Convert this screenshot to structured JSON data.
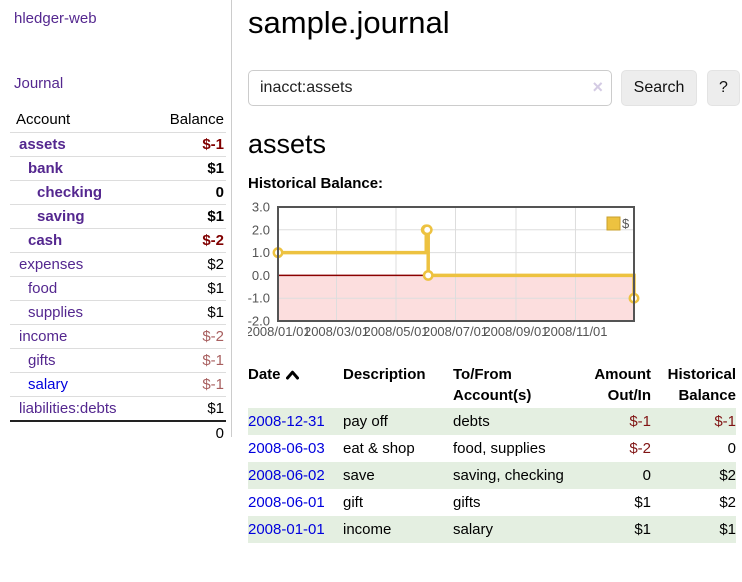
{
  "colors": {
    "accent_purple": "#54278f",
    "link_blue": "#0000dd",
    "negative_red": "#800000",
    "negative_red_light": "#a85f5f",
    "table_negative_red": "#801414",
    "row_green": "#e4efe1",
    "chart_gold": "#edc240",
    "chart_gold_border": "#c9a02e",
    "chart_border_gray": "#545454",
    "chart_zero_line": "#8b0000",
    "chart_negative_fill": "#fcdede",
    "chart_grid": "#dddddd"
  },
  "sidebar": {
    "app_title": "hledger-web",
    "nav_journal_label": "Journal",
    "accounts_table": {
      "headers": [
        "Account",
        "Balance"
      ],
      "rows": [
        {
          "account": "assets",
          "balance": "$-1",
          "depth": 1,
          "bold": true,
          "negative": true,
          "blue": false
        },
        {
          "account": "bank",
          "balance": "$1",
          "depth": 2,
          "bold": true,
          "negative": false,
          "blue": false
        },
        {
          "account": "checking",
          "balance": "0",
          "depth": 3,
          "bold": true,
          "negative": false,
          "blue": false
        },
        {
          "account": "saving",
          "balance": "$1",
          "depth": 3,
          "bold": true,
          "negative": false,
          "blue": false
        },
        {
          "account": "cash",
          "balance": "$-2",
          "depth": 2,
          "bold": true,
          "negative": true,
          "blue": false
        },
        {
          "account": "expenses",
          "balance": "$2",
          "depth": 1,
          "bold": false,
          "negative": false,
          "blue": false
        },
        {
          "account": "food",
          "balance": "$1",
          "depth": 2,
          "bold": false,
          "negative": false,
          "blue": false
        },
        {
          "account": "supplies",
          "balance": "$1",
          "depth": 2,
          "bold": false,
          "negative": false,
          "blue": false
        },
        {
          "account": "income",
          "balance": "$-2",
          "depth": 1,
          "bold": false,
          "negative": true,
          "blue": false
        },
        {
          "account": "gifts",
          "balance": "$-1",
          "depth": 2,
          "bold": false,
          "negative": true,
          "blue": false
        },
        {
          "account": "salary",
          "balance": "$-1",
          "depth": 2,
          "bold": false,
          "negative": true,
          "blue": true
        },
        {
          "account": "liabilities:debts",
          "balance": "$1",
          "depth": 1,
          "bold": false,
          "negative": false,
          "blue": false
        }
      ],
      "total": "0"
    }
  },
  "header": {
    "title": "sample.journal"
  },
  "search": {
    "value": "inacct:assets",
    "clear_icon": "×",
    "button_label": "Search",
    "help_label": "?"
  },
  "account_page": {
    "heading": "assets",
    "chart_label": "Historical Balance:"
  },
  "chart_data": {
    "type": "line",
    "step": true,
    "x_domain": [
      "2008-01-01",
      "2008-12-31"
    ],
    "ylim": [
      -2,
      3
    ],
    "yticks": [
      3.0,
      2.0,
      1.0,
      0.0,
      -1.0,
      -2.0
    ],
    "xticks": [
      {
        "label": "2008/01/01",
        "date": "2008-01-01"
      },
      {
        "label": "2008/03/01",
        "date": "2008-03-01"
      },
      {
        "label": "2008/05/01",
        "date": "2008-05-01"
      },
      {
        "label": "2008/07/01",
        "date": "2008-07-01"
      },
      {
        "label": "2008/09/01",
        "date": "2008-09-01"
      },
      {
        "label": "2008/11/01",
        "date": "2008-11-01"
      }
    ],
    "series": [
      {
        "name": "$",
        "color": "#edc240",
        "points": [
          {
            "x": "2008-01-01",
            "y": 1
          },
          {
            "x": "2008-06-01",
            "y": 2
          },
          {
            "x": "2008-06-02",
            "y": 2
          },
          {
            "x": "2008-06-03",
            "y": 0
          },
          {
            "x": "2008-12-31",
            "y": -1
          }
        ]
      }
    ],
    "legend": {
      "label": "$",
      "position": "top-right"
    },
    "negative_region": true,
    "grid": true
  },
  "register": {
    "headers": [
      {
        "label": "Date",
        "align": "left",
        "sort": "asc"
      },
      {
        "label": "Description",
        "align": "left"
      },
      {
        "label": "To/From Account(s)",
        "align": "left"
      },
      {
        "label": "Amount Out/In",
        "align": "right"
      },
      {
        "label": "Historical Balance",
        "align": "right"
      }
    ],
    "rows": [
      {
        "date": "2008-12-31",
        "description": "pay off",
        "accounts": "debts",
        "amount": "$-1",
        "amount_negative": true,
        "balance": "$-1",
        "balance_negative": true
      },
      {
        "date": "2008-06-03",
        "description": "eat & shop",
        "accounts": "food, supplies",
        "amount": "$-2",
        "amount_negative": true,
        "balance": "0",
        "balance_negative": false
      },
      {
        "date": "2008-06-02",
        "description": "save",
        "accounts": "saving, checking",
        "amount": "0",
        "amount_negative": false,
        "balance": "$2",
        "balance_negative": false
      },
      {
        "date": "2008-06-01",
        "description": "gift",
        "accounts": "gifts",
        "amount": "$1",
        "amount_negative": false,
        "balance": "$2",
        "balance_negative": false
      },
      {
        "date": "2008-01-01",
        "description": "income",
        "accounts": "salary",
        "amount": "$1",
        "amount_negative": false,
        "balance": "$1",
        "balance_negative": false
      }
    ]
  }
}
